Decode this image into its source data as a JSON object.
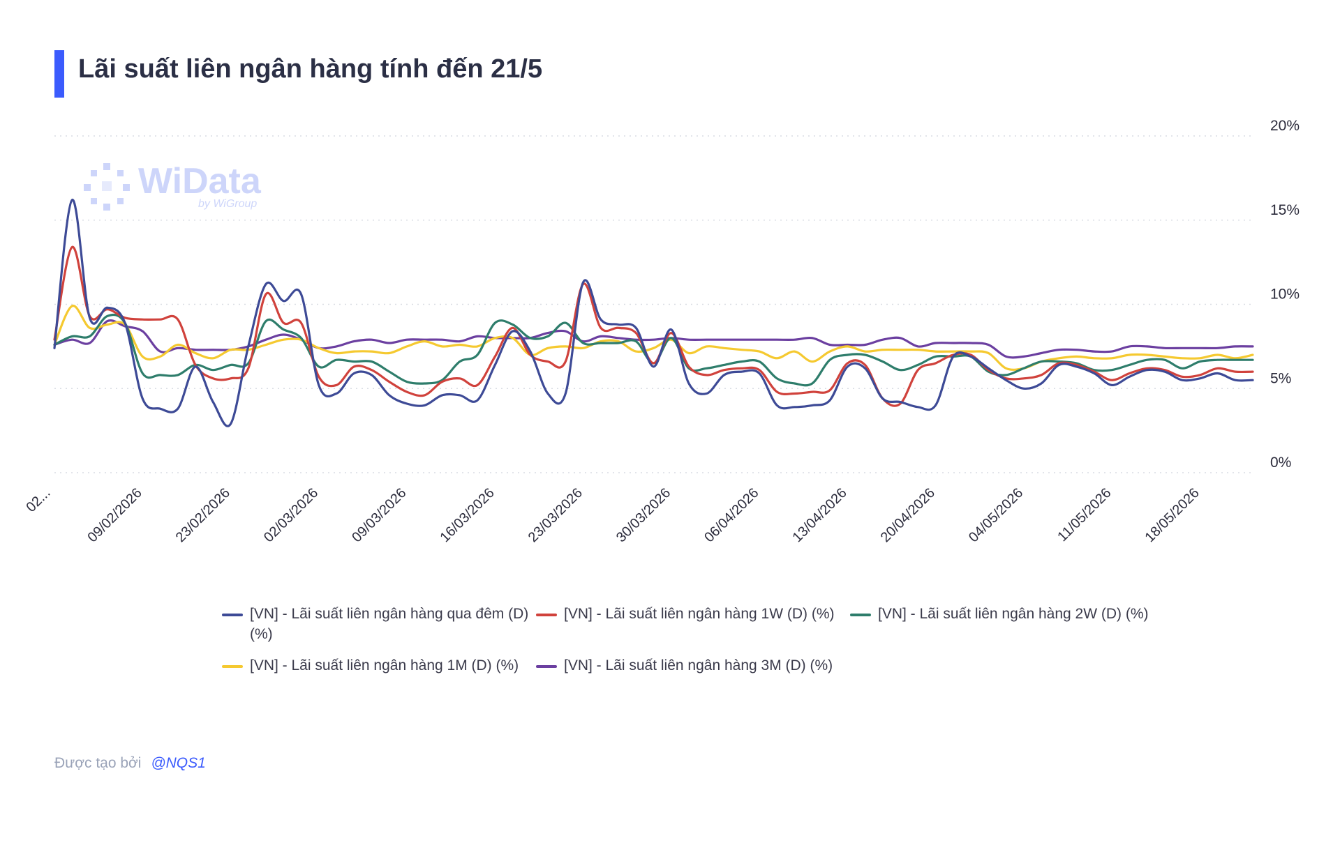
{
  "title": "Lãi suất liên ngân hàng tính đến 21/5",
  "watermark": {
    "name": "WiData",
    "sub": "by WiGroup"
  },
  "footer": {
    "created_by": "Được tạo bởi",
    "handle": "@NQS1"
  },
  "colors": {
    "accent": "#3b5bfd",
    "overnight": "#3d4a96",
    "w1": "#d0423c",
    "w2": "#2e7d6b",
    "m1": "#f5c930",
    "m3": "#6b3fa0"
  },
  "chart_data": {
    "type": "line",
    "ylim": [
      0,
      20
    ],
    "yticks": [
      "0%",
      "5%",
      "10%",
      "15%",
      "20%"
    ],
    "xticks": [
      "02...",
      "09/02/2026",
      "23/02/2026",
      "02/03/2026",
      "09/03/2026",
      "16/03/2026",
      "23/03/2026",
      "30/03/2026",
      "06/04/2026",
      "13/04/2026",
      "20/04/2026",
      "04/05/2026",
      "11/05/2026",
      "18/05/2026"
    ],
    "grid": true,
    "legend_position": "bottom",
    "x": [
      "02/02",
      "03/02",
      "04/02",
      "05/02",
      "06/02",
      "09/02",
      "10/02",
      "11/02",
      "12/02",
      "13/02",
      "23/02",
      "24/02",
      "25/02",
      "26/02",
      "27/02",
      "02/03",
      "03/03",
      "04/03",
      "05/03",
      "06/03",
      "09/03",
      "10/03",
      "11/03",
      "12/03",
      "13/03",
      "16/03",
      "17/03",
      "18/03",
      "19/03",
      "20/03",
      "23/03",
      "24/03",
      "25/03",
      "26/03",
      "27/03",
      "30/03",
      "31/03",
      "01/04",
      "02/04",
      "03/04",
      "06/04",
      "07/04",
      "08/04",
      "09/04",
      "10/04",
      "13/04",
      "14/04",
      "15/04",
      "16/04",
      "17/04",
      "20/04",
      "21/04",
      "22/04",
      "23/04",
      "24/04",
      "04/05",
      "05/05",
      "06/05",
      "07/05",
      "08/05",
      "11/05",
      "12/05",
      "13/05",
      "14/05",
      "15/05",
      "18/05",
      "19/05",
      "20/05",
      "21/05"
    ],
    "series": [
      {
        "name": "[VN] - Lãi suất liên ngân hàng qua đêm (D) (%)",
        "color": "#3d4a96",
        "values": [
          7.4,
          16.2,
          9.2,
          9.8,
          8.9,
          4.4,
          3.8,
          3.8,
          6.3,
          4.2,
          2.9,
          7.5,
          11.2,
          10.2,
          10.6,
          5.2,
          4.7,
          5.9,
          5.8,
          4.6,
          4.1,
          4.0,
          4.6,
          4.6,
          4.3,
          6.4,
          8.4,
          7.2,
          4.7,
          4.7,
          11.3,
          9.1,
          8.8,
          8.6,
          6.3,
          8.5,
          5.3,
          4.7,
          5.8,
          6.0,
          5.9,
          4.0,
          3.9,
          4.0,
          4.3,
          6.3,
          6.2,
          4.4,
          4.2,
          3.9,
          4.0,
          6.9,
          6.9,
          6.2,
          5.5,
          5.0,
          5.3,
          6.4,
          6.3,
          5.9,
          5.2,
          5.7,
          6.1,
          6.0,
          5.5,
          5.6,
          5.9,
          5.5,
          5.5
        ]
      },
      {
        "name": "[VN] - Lãi suất liên ngân hàng 1W (D) (%)",
        "color": "#d0423c",
        "values": [
          7.9,
          13.4,
          9.3,
          9.7,
          9.2,
          9.1,
          9.1,
          9.1,
          6.4,
          5.6,
          5.6,
          6.2,
          10.6,
          8.9,
          8.9,
          5.7,
          5.2,
          6.3,
          6.1,
          5.4,
          4.8,
          4.6,
          5.4,
          5.6,
          5.2,
          6.9,
          8.6,
          7.0,
          6.6,
          6.6,
          11.2,
          8.6,
          8.6,
          8.3,
          6.5,
          8.3,
          6.3,
          5.8,
          6.1,
          6.2,
          6.1,
          4.8,
          4.7,
          4.8,
          4.9,
          6.5,
          6.4,
          4.4,
          4.1,
          6.1,
          6.5,
          7.0,
          7.0,
          6.1,
          5.6,
          5.6,
          5.8,
          6.5,
          6.4,
          6.0,
          5.5,
          5.9,
          6.2,
          6.1,
          5.7,
          5.8,
          6.2,
          6.0,
          6.0
        ]
      },
      {
        "name": "[VN] - Lãi suất liên ngân hàng 2W (D) (%)",
        "color": "#2e7d6b",
        "values": [
          7.6,
          8.1,
          8.1,
          9.3,
          8.9,
          5.9,
          5.8,
          5.8,
          6.4,
          6.1,
          6.4,
          6.5,
          9.0,
          8.5,
          8.0,
          6.3,
          6.7,
          6.6,
          6.6,
          6.0,
          5.4,
          5.3,
          5.5,
          6.6,
          7.0,
          8.9,
          8.8,
          8.0,
          8.1,
          8.9,
          7.7,
          7.7,
          7.7,
          7.8,
          6.5,
          8.0,
          6.2,
          6.2,
          6.4,
          6.6,
          6.6,
          5.6,
          5.3,
          5.3,
          6.7,
          7.0,
          7.0,
          6.6,
          6.1,
          6.4,
          6.9,
          6.9,
          6.9,
          6.0,
          5.8,
          6.2,
          6.6,
          6.6,
          6.5,
          6.1,
          6.1,
          6.4,
          6.7,
          6.7,
          6.2,
          6.6,
          6.7,
          6.7,
          6.7
        ]
      },
      {
        "name": "[VN] - Lãi suất liên ngân hàng 1M (D) (%)",
        "color": "#f5c930",
        "values": [
          7.6,
          9.9,
          8.6,
          8.8,
          8.8,
          6.9,
          6.9,
          7.6,
          7.1,
          6.8,
          7.3,
          7.3,
          7.6,
          7.9,
          7.9,
          7.4,
          7.1,
          7.2,
          7.2,
          7.1,
          7.5,
          7.8,
          7.5,
          7.6,
          7.5,
          8.0,
          8.0,
          7.0,
          7.4,
          7.5,
          7.4,
          7.8,
          7.8,
          7.2,
          7.4,
          7.9,
          7.1,
          7.5,
          7.4,
          7.3,
          7.2,
          6.8,
          7.2,
          6.6,
          7.2,
          7.5,
          7.2,
          7.3,
          7.3,
          7.3,
          7.2,
          7.2,
          7.2,
          7.1,
          6.2,
          6.2,
          6.6,
          6.8,
          6.9,
          6.8,
          6.8,
          7.0,
          7.0,
          6.9,
          6.8,
          6.8,
          7.0,
          6.8,
          7.0
        ]
      },
      {
        "name": "[VN] - Lãi suất liên ngân hàng 3M (D) (%)",
        "color": "#6b3fa0",
        "values": [
          7.6,
          7.9,
          7.7,
          9.0,
          8.7,
          8.4,
          7.2,
          7.4,
          7.3,
          7.3,
          7.3,
          7.5,
          7.9,
          8.2,
          7.9,
          7.4,
          7.5,
          7.8,
          7.9,
          7.7,
          7.9,
          7.9,
          7.9,
          7.8,
          8.1,
          8.0,
          8.0,
          8.0,
          8.3,
          8.4,
          7.8,
          8.1,
          8.0,
          7.9,
          7.9,
          8.0,
          7.9,
          7.9,
          7.9,
          7.9,
          7.9,
          7.9,
          7.9,
          8.0,
          7.6,
          7.6,
          7.6,
          7.9,
          8.0,
          7.5,
          7.7,
          7.7,
          7.7,
          7.6,
          6.9,
          6.9,
          7.1,
          7.3,
          7.3,
          7.2,
          7.2,
          7.5,
          7.5,
          7.4,
          7.4,
          7.4,
          7.4,
          7.5,
          7.5
        ]
      }
    ]
  }
}
